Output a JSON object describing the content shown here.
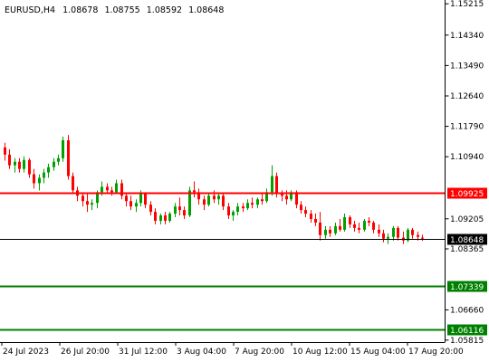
{
  "header": {
    "symbol": "EURUSD,H4",
    "open": "1.08678",
    "high": "1.08755",
    "low": "1.08592",
    "close": "1.08648"
  },
  "colors": {
    "bull": "#00a000",
    "bear": "#ff0000",
    "resistance": "#ff0000",
    "support": "#008000",
    "current": "#000000",
    "axis": "#000000"
  },
  "price_scale": {
    "min": 1.0581,
    "max": 1.1522,
    "labels": [
      "1.15215",
      "1.14340",
      "1.13490",
      "1.12640",
      "1.11790",
      "1.10940",
      "1.09205",
      "1.08365",
      "1.06660",
      "1.05815"
    ]
  },
  "time_axis": {
    "labels": [
      "24 Jul 2023",
      "26 Jul 20:00",
      "31 Jul 12:00",
      "3 Aug 04:00",
      "7 Aug 20:00",
      "10 Aug 12:00",
      "15 Aug 04:00",
      "17 Aug 20:00"
    ]
  },
  "levels": [
    {
      "name": "resistance",
      "price": 1.09925,
      "label": "1.09925",
      "color": "#ff0000"
    },
    {
      "name": "current",
      "price": 1.08648,
      "label": "1.08648",
      "color": "#000000"
    },
    {
      "name": "support-1",
      "price": 1.07339,
      "label": "1.07339",
      "color": "#008000"
    },
    {
      "name": "support-2",
      "price": 1.06116,
      "label": "1.06116",
      "color": "#008000"
    }
  ],
  "chart_data": {
    "type": "candlestick",
    "symbol": "EURUSD,H4",
    "ylim": [
      1.0581,
      1.1522
    ],
    "candles": [
      [
        1.112,
        1.1133,
        1.1083,
        1.11
      ],
      [
        1.11,
        1.1115,
        1.106,
        1.107
      ],
      [
        1.107,
        1.109,
        1.105,
        1.108
      ],
      [
        1.108,
        1.109,
        1.105,
        1.106
      ],
      [
        1.106,
        1.1095,
        1.105,
        1.1085
      ],
      [
        1.1085,
        1.109,
        1.1035,
        1.1045
      ],
      [
        1.1045,
        1.106,
        1.1005,
        1.102
      ],
      [
        1.102,
        1.1045,
        1.1,
        1.1035
      ],
      [
        1.1035,
        1.106,
        1.102,
        1.105
      ],
      [
        1.105,
        1.1075,
        1.1035,
        1.1065
      ],
      [
        1.1065,
        1.109,
        1.1055,
        1.108
      ],
      [
        1.108,
        1.11,
        1.107,
        1.109
      ],
      [
        1.109,
        1.115,
        1.108,
        1.114
      ],
      [
        1.114,
        1.1155,
        1.103,
        1.104
      ],
      [
        1.104,
        1.105,
        1.099,
        1.1
      ],
      [
        1.1,
        1.101,
        1.097,
        1.0985
      ],
      [
        1.0985,
        1.0995,
        1.0955,
        1.097
      ],
      [
        1.097,
        1.099,
        1.094,
        1.096
      ],
      [
        1.096,
        1.0975,
        1.0945,
        1.0965
      ],
      [
        1.0965,
        1.1,
        1.095,
        1.0995
      ],
      [
        1.0995,
        1.1025,
        1.0985,
        1.101
      ],
      [
        1.101,
        1.102,
        1.099,
        1.1
      ],
      [
        1.1,
        1.101,
        1.0985,
        1.0995
      ],
      [
        1.0995,
        1.103,
        1.099,
        1.102
      ],
      [
        1.102,
        1.103,
        1.0975,
        1.0985
      ],
      [
        1.0985,
        1.099,
        1.0955,
        1.097
      ],
      [
        1.097,
        1.0985,
        1.0945,
        1.0955
      ],
      [
        1.0955,
        1.0975,
        1.094,
        1.0965
      ],
      [
        1.0965,
        1.1,
        1.0955,
        1.099
      ],
      [
        1.099,
        1.0995,
        1.095,
        1.096
      ],
      [
        1.096,
        1.097,
        1.093,
        1.094
      ],
      [
        1.094,
        1.095,
        1.0905,
        1.0915
      ],
      [
        1.0915,
        1.0935,
        1.0905,
        1.093
      ],
      [
        1.093,
        1.094,
        1.0905,
        1.0915
      ],
      [
        1.0915,
        1.094,
        1.091,
        1.0935
      ],
      [
        1.0935,
        1.0965,
        1.0925,
        1.0955
      ],
      [
        1.0955,
        1.098,
        1.093,
        1.0945
      ],
      [
        1.0945,
        1.0955,
        1.092,
        1.093
      ],
      [
        1.093,
        1.101,
        1.0925,
        1.1
      ],
      [
        1.1,
        1.1025,
        1.098,
        1.0995
      ],
      [
        1.0995,
        1.1005,
        1.096,
        1.0975
      ],
      [
        1.0975,
        1.0985,
        1.0945,
        1.096
      ],
      [
        1.096,
        1.099,
        1.0955,
        1.0985
      ],
      [
        1.0985,
        1.1,
        1.0965,
        1.0975
      ],
      [
        1.0975,
        1.099,
        1.096,
        1.0985
      ],
      [
        1.0985,
        1.099,
        1.0945,
        1.0955
      ],
      [
        1.0955,
        1.0965,
        1.092,
        1.093
      ],
      [
        1.093,
        1.0945,
        1.0915,
        1.094
      ],
      [
        1.094,
        1.0965,
        1.093,
        1.0955
      ],
      [
        1.0955,
        1.0965,
        1.094,
        1.095
      ],
      [
        1.095,
        1.0975,
        1.0945,
        1.0965
      ],
      [
        1.0965,
        1.098,
        1.095,
        1.096
      ],
      [
        1.096,
        1.098,
        1.095,
        1.0975
      ],
      [
        1.0975,
        1.099,
        1.096,
        1.097
      ],
      [
        1.097,
        1.1005,
        1.0965,
        1.0995
      ],
      [
        1.0995,
        1.107,
        1.0985,
        1.104
      ],
      [
        1.104,
        1.105,
        1.098,
        1.099
      ],
      [
        1.099,
        1.1,
        1.097,
        1.0985
      ],
      [
        1.0985,
        1.1,
        1.096,
        1.0975
      ],
      [
        1.0975,
        1.1,
        1.097,
        1.0995
      ],
      [
        1.0995,
        1.1,
        1.095,
        1.096
      ],
      [
        1.096,
        1.097,
        1.0935,
        1.0945
      ],
      [
        1.0945,
        1.0955,
        1.0925,
        1.0935
      ],
      [
        1.0935,
        1.0945,
        1.091,
        1.092
      ],
      [
        1.092,
        1.0935,
        1.09,
        1.091
      ],
      [
        1.091,
        1.094,
        1.086,
        1.0875
      ],
      [
        1.0875,
        1.09,
        1.0865,
        1.089
      ],
      [
        1.089,
        1.09,
        1.087,
        1.088
      ],
      [
        1.088,
        1.091,
        1.0875,
        1.09
      ],
      [
        1.09,
        1.092,
        1.0885,
        1.089
      ],
      [
        1.089,
        1.0935,
        1.0885,
        1.0925
      ],
      [
        1.0925,
        1.093,
        1.0895,
        1.0905
      ],
      [
        1.0905,
        1.0915,
        1.0885,
        1.0895
      ],
      [
        1.0895,
        1.091,
        1.088,
        1.089
      ],
      [
        1.089,
        1.092,
        1.0885,
        1.0915
      ],
      [
        1.0915,
        1.0925,
        1.09,
        1.091
      ],
      [
        1.091,
        1.0915,
        1.088,
        1.089
      ],
      [
        1.089,
        1.0905,
        1.087,
        1.088
      ],
      [
        1.088,
        1.089,
        1.0855,
        1.0865
      ],
      [
        1.0865,
        1.088,
        1.085,
        1.087
      ],
      [
        1.087,
        1.09,
        1.086,
        1.0895
      ],
      [
        1.0895,
        1.09,
        1.086,
        1.0868
      ],
      [
        1.0868,
        1.0885,
        1.085,
        1.086
      ],
      [
        1.086,
        1.0895,
        1.0855,
        1.089
      ],
      [
        1.089,
        1.0895,
        1.0865,
        1.0875
      ],
      [
        1.0875,
        1.0885,
        1.086,
        1.087
      ],
      [
        1.0868,
        1.0876,
        1.0859,
        1.0865
      ]
    ]
  }
}
